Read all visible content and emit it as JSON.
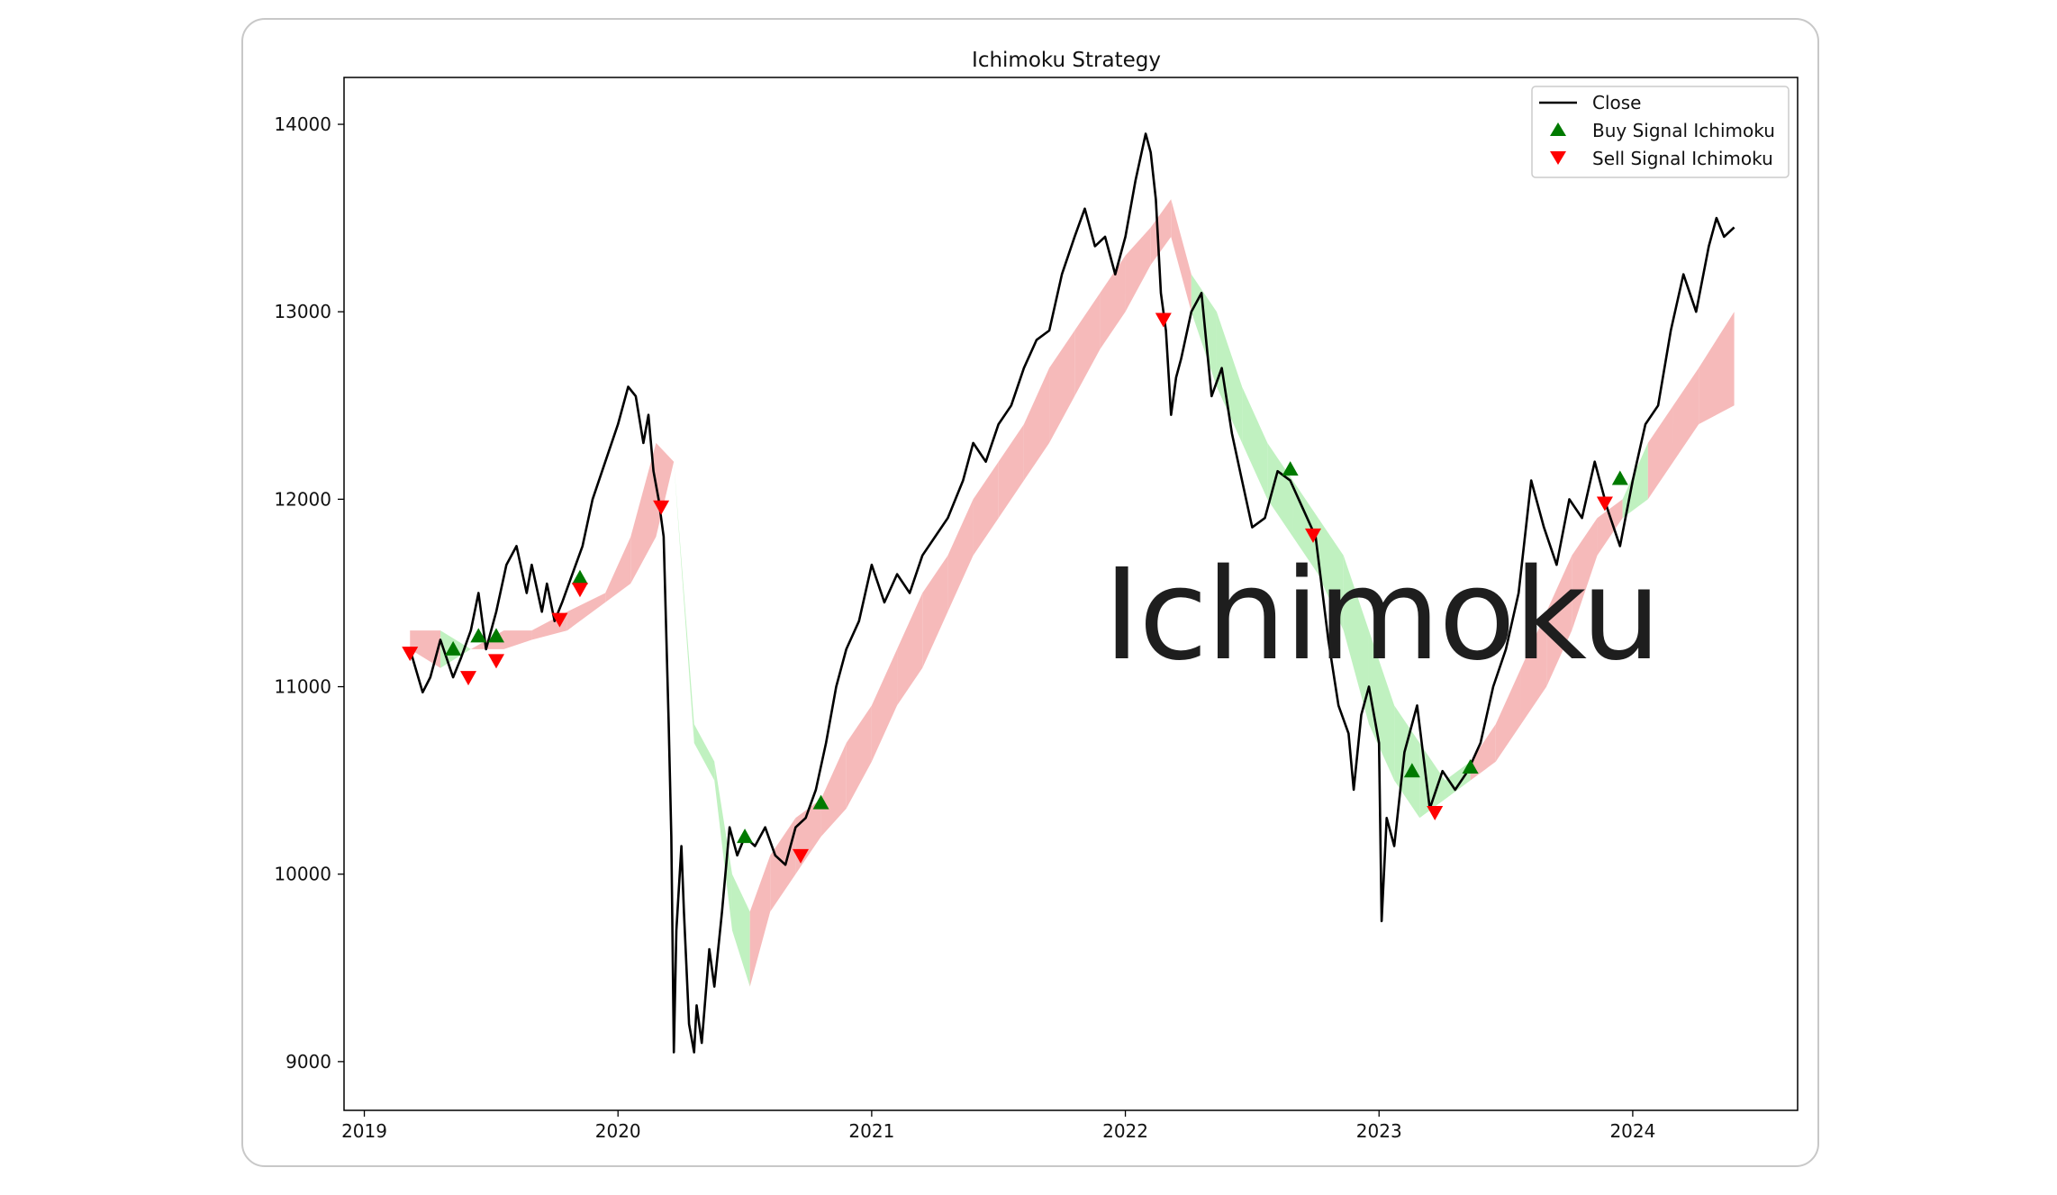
{
  "card": {
    "border_color": "#c8c8c8",
    "background": "#ffffff"
  },
  "watermark": {
    "text": "Ichimoku"
  },
  "chart_data": {
    "type": "line",
    "title": "Ichimoku Strategy",
    "xlabel": "",
    "ylabel": "",
    "xlim": [
      2018.92,
      2024.65
    ],
    "ylim": [
      8740,
      14250
    ],
    "x_ticks": [
      2019,
      2020,
      2021,
      2022,
      2023,
      2024
    ],
    "y_ticks": [
      9000,
      10000,
      11000,
      12000,
      13000,
      14000
    ],
    "grid": false,
    "legend": {
      "position": "top-right",
      "entries": [
        "Close",
        "Buy Signal Ichimoku",
        "Sell Signal Ichimoku"
      ]
    },
    "colors": {
      "close": "#000000",
      "cloud_bull": "#b9f0b9",
      "cloud_bear": "#f5b3b3",
      "buy": "#007a00",
      "sell": "#ff0000"
    },
    "series": [
      {
        "name": "Close",
        "x": [
          2019.18,
          2019.23,
          2019.26,
          2019.3,
          2019.35,
          2019.38,
          2019.42,
          2019.45,
          2019.48,
          2019.52,
          2019.56,
          2019.6,
          2019.64,
          2019.66,
          2019.7,
          2019.72,
          2019.75,
          2019.78,
          2019.82,
          2019.86,
          2019.9,
          2019.95,
          2020.0,
          2020.04,
          2020.07,
          2020.1,
          2020.12,
          2020.14,
          2020.16,
          2020.18,
          2020.19,
          2020.2,
          2020.21,
          2020.22,
          2020.23,
          2020.25,
          2020.26,
          2020.28,
          2020.3,
          2020.31,
          2020.33,
          2020.36,
          2020.38,
          2020.41,
          2020.44,
          2020.47,
          2020.5,
          2020.54,
          2020.58,
          2020.62,
          2020.66,
          2020.7,
          2020.74,
          2020.78,
          2020.82,
          2020.86,
          2020.9,
          2020.95,
          2021.0,
          2021.05,
          2021.1,
          2021.15,
          2021.2,
          2021.25,
          2021.3,
          2021.36,
          2021.4,
          2021.45,
          2021.5,
          2021.55,
          2021.6,
          2021.65,
          2021.7,
          2021.75,
          2021.8,
          2021.84,
          2021.88,
          2021.92,
          2021.96,
          2022.0,
          2022.04,
          2022.08,
          2022.1,
          2022.12,
          2022.14,
          2022.16,
          2022.18,
          2022.2,
          2022.22,
          2022.26,
          2022.3,
          2022.34,
          2022.38,
          2022.42,
          2022.46,
          2022.5,
          2022.55,
          2022.6,
          2022.65,
          2022.7,
          2022.75,
          2022.8,
          2022.84,
          2022.88,
          2022.9,
          2022.93,
          2022.96,
          2023.0,
          2023.01,
          2023.03,
          2023.06,
          2023.1,
          2023.15,
          2023.2,
          2023.25,
          2023.3,
          2023.35,
          2023.4,
          2023.45,
          2023.5,
          2023.55,
          2023.6,
          2023.65,
          2023.7,
          2023.75,
          2023.8,
          2023.85,
          2023.9,
          2023.95,
          2024.0,
          2024.05,
          2024.1,
          2024.15,
          2024.2,
          2024.25,
          2024.3,
          2024.33,
          2024.36,
          2024.4
        ],
        "y": [
          11200,
          10970,
          11050,
          11250,
          11050,
          11150,
          11300,
          11500,
          11200,
          11400,
          11650,
          11750,
          11500,
          11650,
          11400,
          11550,
          11350,
          11450,
          11600,
          11750,
          12000,
          12200,
          12400,
          12600,
          12550,
          12300,
          12450,
          12150,
          12000,
          11800,
          11300,
          10800,
          10200,
          9050,
          9700,
          10150,
          9800,
          9200,
          9050,
          9300,
          9100,
          9600,
          9400,
          9800,
          10250,
          10100,
          10200,
          10150,
          10250,
          10100,
          10050,
          10250,
          10300,
          10450,
          10700,
          11000,
          11200,
          11350,
          11650,
          11450,
          11600,
          11500,
          11700,
          11800,
          11900,
          12100,
          12300,
          12200,
          12400,
          12500,
          12700,
          12850,
          12900,
          13200,
          13400,
          13550,
          13350,
          13400,
          13200,
          13400,
          13700,
          13950,
          13850,
          13600,
          13100,
          12900,
          12450,
          12650,
          12750,
          13000,
          13100,
          12550,
          12700,
          12350,
          12100,
          11850,
          11900,
          12150,
          12100,
          11950,
          11800,
          11250,
          10900,
          10750,
          10450,
          10850,
          11000,
          10700,
          9750,
          10300,
          10150,
          10650,
          10900,
          10350,
          10550,
          10450,
          10550,
          10700,
          11000,
          11200,
          11500,
          12100,
          11850,
          11650,
          12000,
          11900,
          12200,
          11950,
          11750,
          12100,
          12400,
          12500,
          12900,
          13200,
          13000,
          13350,
          13500,
          13400,
          13450
        ]
      },
      {
        "name": "Buy Signal Ichimoku",
        "x": [
          2019.35,
          2019.45,
          2019.52,
          2019.85,
          2020.5,
          2020.8,
          2022.65,
          2023.13,
          2023.36,
          2023.95
        ],
        "y": [
          11200,
          11270,
          11270,
          11580,
          10200,
          10380,
          12160,
          10550,
          10570,
          12110
        ]
      },
      {
        "name": "Sell Signal Ichimoku",
        "x": [
          2019.18,
          2019.41,
          2019.52,
          2019.77,
          2019.85,
          2020.17,
          2020.72,
          2022.15,
          2022.74,
          2023.22,
          2023.89
        ],
        "y": [
          11180,
          11050,
          11140,
          11360,
          11520,
          11960,
          10100,
          12960,
          11810,
          10330,
          11980
        ]
      },
      {
        "name": "",
        "x": [
          2019.18,
          2019.3,
          2019.42,
          2019.55,
          2019.66,
          2019.8,
          2019.95,
          2020.05,
          2020.15,
          2020.22,
          2020.3,
          2020.38,
          2020.45,
          2020.52,
          2020.6,
          2020.7,
          2020.8,
          2020.9,
          2021.0,
          2021.1,
          2021.2,
          2021.3,
          2021.4,
          2021.5,
          2021.6,
          2021.7,
          2021.8,
          2021.9,
          2022.0,
          2022.1,
          2022.18,
          2022.26,
          2022.36,
          2022.46,
          2022.56,
          2022.66,
          2022.76,
          2022.86,
          2022.96,
          2023.06,
          2023.16,
          2023.26,
          2023.36,
          2023.46,
          2023.56,
          2023.66,
          2023.76,
          2023.86,
          2023.96,
          2024.06,
          2024.16,
          2024.26,
          2024.4
        ],
        "y": [
          11300,
          11300,
          11200,
          11300,
          11300,
          11400,
          11500,
          11800,
          12300,
          12200,
          10800,
          10600,
          10000,
          9800,
          10100,
          10300,
          10400,
          10700,
          10900,
          11200,
          11500,
          11700,
          12000,
          12200,
          12400,
          12700,
          12900,
          13100,
          13300,
          13450,
          13600,
          13200,
          13000,
          12600,
          12300,
          12100,
          11900,
          11700,
          11300,
          10900,
          10700,
          10500,
          10600,
          10800,
          11100,
          11400,
          11700,
          11900,
          12000,
          12300,
          12500,
          12700,
          13000
        ]
      },
      {
        "name": "",
        "x": [
          2019.18,
          2019.3,
          2019.42,
          2019.55,
          2019.66,
          2019.8,
          2019.95,
          2020.05,
          2020.15,
          2020.22,
          2020.3,
          2020.38,
          2020.45,
          2020.52,
          2020.6,
          2020.7,
          2020.8,
          2020.9,
          2021.0,
          2021.1,
          2021.2,
          2021.3,
          2021.4,
          2021.5,
          2021.6,
          2021.7,
          2021.8,
          2021.9,
          2022.0,
          2022.1,
          2022.18,
          2022.26,
          2022.36,
          2022.46,
          2022.56,
          2022.66,
          2022.76,
          2022.86,
          2022.96,
          2023.06,
          2023.16,
          2023.26,
          2023.36,
          2023.46,
          2023.56,
          2023.66,
          2023.76,
          2023.86,
          2023.96,
          2024.06,
          2024.16,
          2024.26,
          2024.4
        ],
        "y": [
          11200,
          11100,
          11200,
          11200,
          11250,
          11300,
          11450,
          11550,
          11800,
          12200,
          10700,
          10500,
          9700,
          9400,
          9800,
          10000,
          10200,
          10350,
          10600,
          10900,
          11100,
          11400,
          11700,
          11900,
          12100,
          12300,
          12550,
          12800,
          13000,
          13250,
          13400,
          13000,
          12600,
          12300,
          12000,
          11800,
          11600,
          11300,
          10800,
          10500,
          10300,
          10400,
          10500,
          10600,
          10800,
          11000,
          11300,
          11700,
          11900,
          12000,
          12200,
          12400,
          12500
        ]
      },
      {
        "name": "",
        "x": [
          2019.18,
          2019.3,
          2019.42,
          2019.55,
          2019.66,
          2019.8,
          2019.95,
          2020.05,
          2020.15,
          2020.22,
          2020.3,
          2020.38,
          2020.45,
          2020.52,
          2020.6,
          2020.7,
          2020.8,
          2020.9,
          2021.0,
          2021.1,
          2021.2,
          2021.3,
          2021.4,
          2021.5,
          2021.6,
          2021.7,
          2021.8,
          2021.9,
          2022.0,
          2022.1,
          2022.18,
          2022.26,
          2022.36,
          2022.46,
          2022.56,
          2022.66,
          2022.76,
          2022.86,
          2022.96,
          2023.06,
          2023.16,
          2023.26,
          2023.36,
          2023.46,
          2023.56,
          2023.66,
          2023.76,
          2023.86,
          2023.96,
          2024.06,
          2024.16,
          2024.26,
          2024.4
        ],
        "y": [
          11200,
          11250,
          11100,
          11150,
          11250,
          11350,
          11450,
          11550,
          11900,
          12300,
          10800,
          10750,
          10700,
          9400,
          9950,
          10150,
          10300,
          10450,
          10700,
          11000,
          11300,
          11500,
          11800,
          12000,
          12200,
          12500,
          12700,
          12900,
          13100,
          13300,
          13300,
          13200,
          12950,
          12600,
          12300,
          12150,
          11900,
          11600,
          11400,
          11000,
          10700,
          10500,
          10550,
          10600,
          10900,
          11200,
          11500,
          11800,
          12000,
          12100,
          12200,
          12400,
          12600
        ]
      }
    ]
  }
}
